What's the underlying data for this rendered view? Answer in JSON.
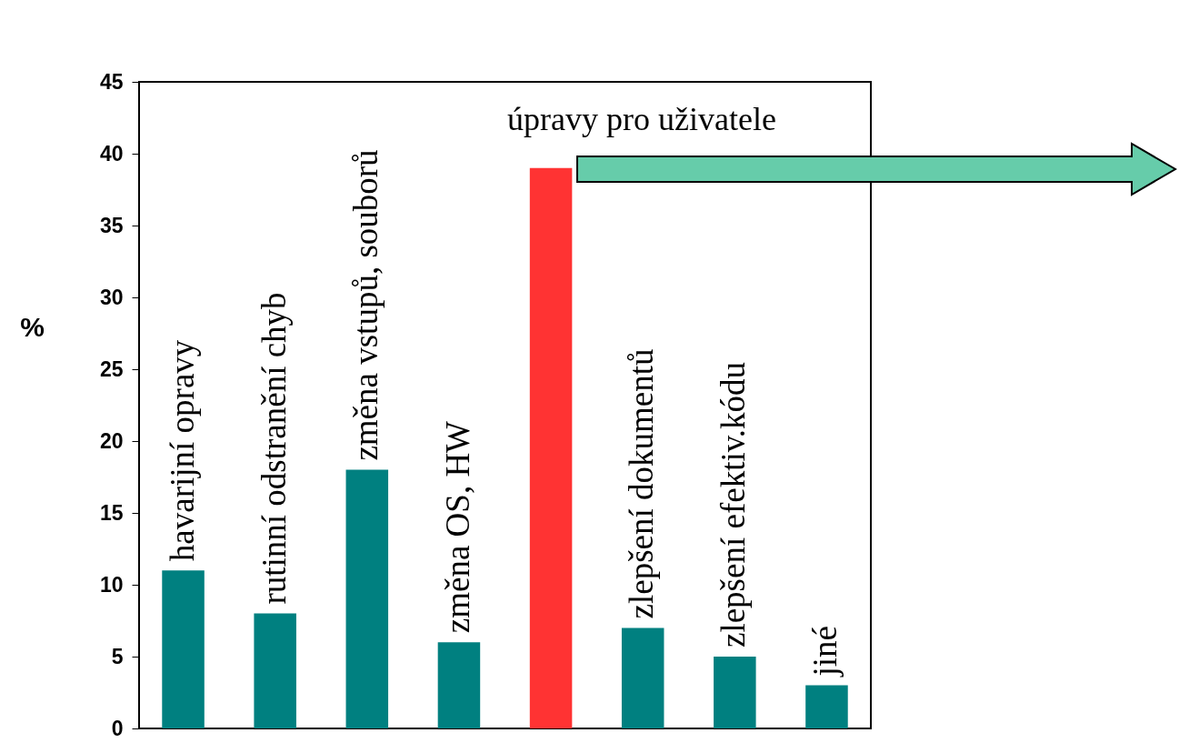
{
  "chart_data": {
    "type": "bar",
    "ylabel": "%",
    "categories": [
      "havarijní opravy",
      "rutinní odstranění chyb",
      "změna vstupů, souborů",
      "změna OS, HW",
      null,
      "zlepšení dokumentů",
      "zlepšení efektiv.kódu",
      "jiné"
    ],
    "values": [
      11,
      8,
      18,
      6,
      39,
      7,
      5,
      3
    ],
    "colors": [
      "#008080",
      "#008080",
      "#008080",
      "#008080",
      "#ff3333",
      "#008080",
      "#008080",
      "#008080"
    ],
    "ylim": [
      0,
      45
    ],
    "yticks": [
      0,
      5,
      10,
      15,
      20,
      25,
      30,
      35,
      40,
      45
    ],
    "grid": false,
    "tick_labels": "y",
    "annotations": [
      "úpravy pro uživatele"
    ]
  }
}
